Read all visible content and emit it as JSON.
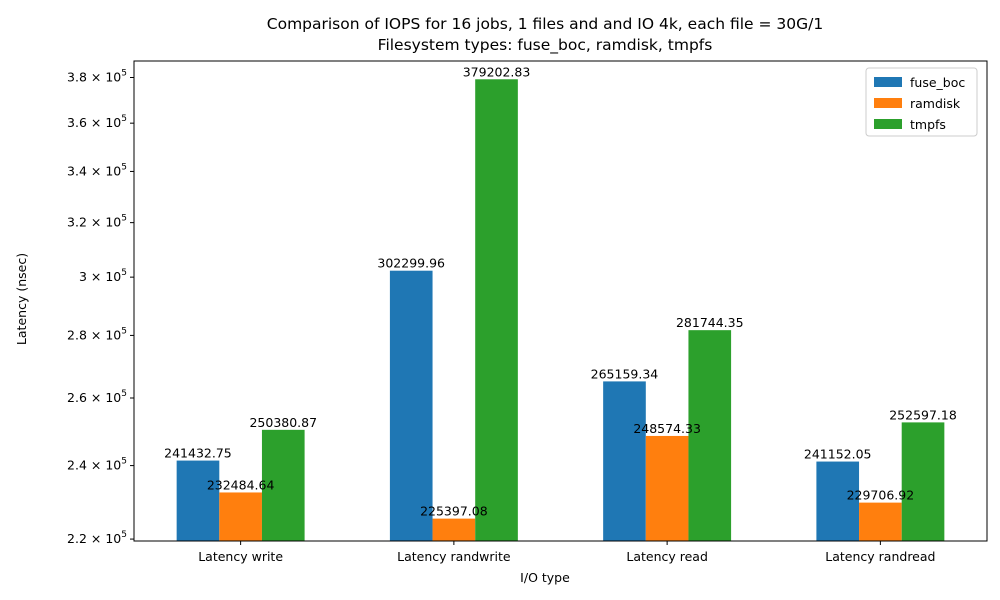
{
  "chart_data": {
    "type": "bar",
    "title_lines": [
      "Comparison of IOPS for 16 jobs, 1 files and  and IO 4k, each file = 30G/1",
      "Filesystem types: fuse_boc, ramdisk, tmpfs"
    ],
    "xlabel": "I/O type",
    "ylabel": "Latency (nsec)",
    "categories": [
      "Latency write",
      "Latency randwrite",
      "Latency read",
      "Latency randread"
    ],
    "series": [
      {
        "name": "fuse_boc",
        "color": "#1f77b4",
        "values": [
          241432.75,
          302299.96,
          265159.34,
          241152.05
        ],
        "labels": [
          "241432.75",
          "302299.96",
          "265159.34",
          "241152.05"
        ]
      },
      {
        "name": "ramdisk",
        "color": "#ff7f0e",
        "values": [
          232484.64,
          225397.08,
          248574.33,
          229706.92
        ],
        "labels": [
          "232484.64",
          "225397.08",
          "248574.33",
          "229706.92"
        ]
      },
      {
        "name": "tmpfs",
        "color": "#2ca02c",
        "values": [
          250380.87,
          379202.83,
          281744.35,
          252597.18
        ],
        "labels": [
          "250380.87",
          "379202.83",
          "281744.35",
          "252597.18"
        ]
      }
    ],
    "y_scale": "log",
    "ylim": [
      219500,
      387500
    ],
    "y_ticks": [
      {
        "value": 220000,
        "mantissa": "2.2"
      },
      {
        "value": 240000,
        "mantissa": "2.4"
      },
      {
        "value": 260000,
        "mantissa": "2.6"
      },
      {
        "value": 280000,
        "mantissa": "2.8"
      },
      {
        "value": 300000,
        "mantissa": "3"
      },
      {
        "value": 320000,
        "mantissa": "3.2"
      },
      {
        "value": 340000,
        "mantissa": "3.4"
      },
      {
        "value": 360000,
        "mantissa": "3.6"
      },
      {
        "value": 380000,
        "mantissa": "3.8"
      }
    ],
    "y_tick_base": "10",
    "y_tick_exponent": "5",
    "legend_position": "top-right",
    "grid": false
  }
}
